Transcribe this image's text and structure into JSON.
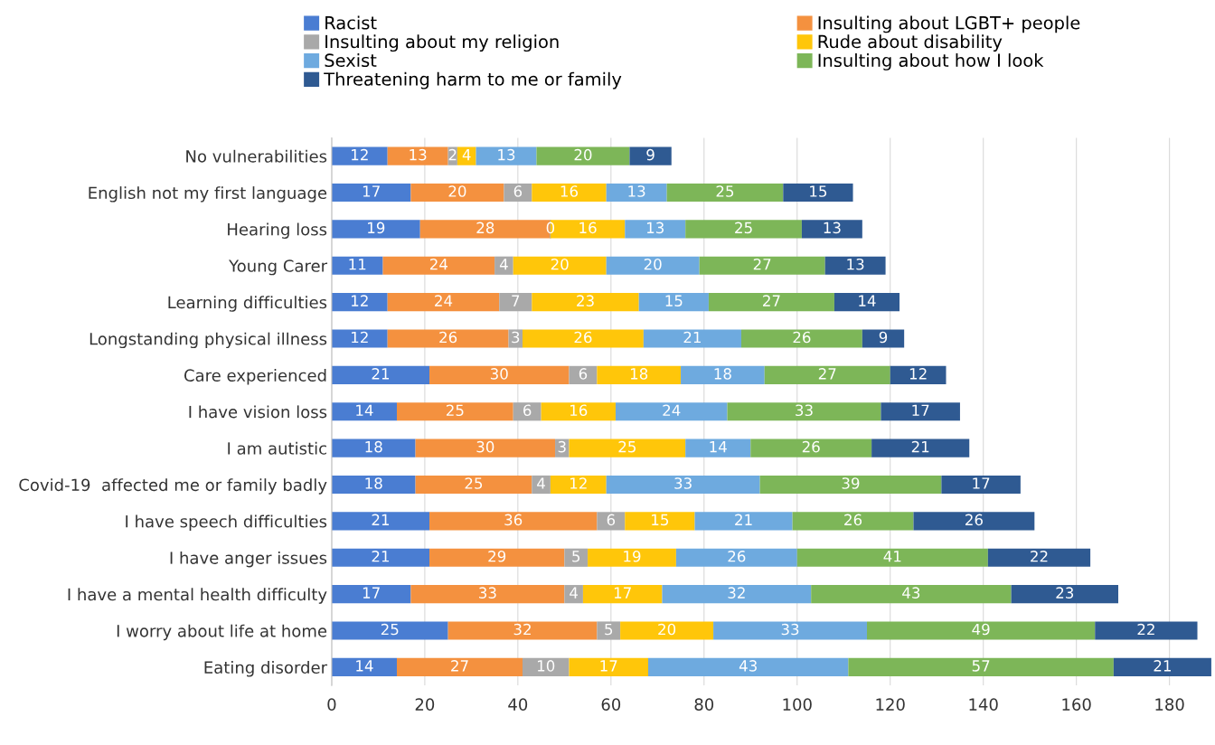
{
  "chart_data": {
    "type": "bar",
    "orientation": "horizontal",
    "stacked": true,
    "data_labels": true,
    "grid": "x",
    "legend": "top",
    "categories": [
      "No vulnerabilities",
      "English not my first language",
      "Hearing loss",
      "Young Carer",
      "Learning difficulties",
      "Longstanding physical illness",
      "Care experienced",
      "I have vision loss",
      "I am autistic",
      "Covid-19  affected me or family badly",
      "I have speech difficulties",
      "I have anger issues",
      "I have a mental health difficulty",
      "I worry about life at home",
      "Eating disorder"
    ],
    "xlim": [
      0,
      189
    ],
    "xticks": [
      0,
      20,
      40,
      60,
      80,
      100,
      120,
      140,
      160,
      180
    ],
    "series": [
      {
        "name": "Racist",
        "color": "#4a7dd2",
        "values": [
          12,
          17,
          19,
          11,
          12,
          12,
          21,
          14,
          18,
          18,
          21,
          21,
          17,
          25,
          14
        ]
      },
      {
        "name": "Insulting about LGBT+ people",
        "color": "#f4913f",
        "values": [
          13,
          20,
          28,
          24,
          24,
          26,
          30,
          25,
          30,
          25,
          36,
          29,
          33,
          32,
          27
        ]
      },
      {
        "name": "Insulting about my religion",
        "color": "#a9a9a9",
        "values": [
          2,
          6,
          0,
          4,
          7,
          3,
          6,
          6,
          3,
          4,
          6,
          5,
          4,
          5,
          10
        ],
        "value_labels": [
          "2",
          "6",
          "0",
          "4",
          "7",
          "3",
          "6",
          "6",
          "3",
          "4",
          "6",
          "5",
          "4",
          "5",
          "10"
        ]
      },
      {
        "name": "Rude about disability",
        "color": "#ffc60a",
        "values": [
          4,
          16,
          16,
          20,
          23,
          26,
          18,
          16,
          25,
          12,
          15,
          19,
          17,
          20,
          17
        ]
      },
      {
        "name": "Sexist",
        "color": "#6eaadf",
        "values": [
          13,
          13,
          13,
          20,
          15,
          21,
          18,
          24,
          14,
          33,
          21,
          26,
          32,
          33,
          43
        ]
      },
      {
        "name": "Insulting about how I look",
        "color": "#7db658",
        "values": [
          20,
          25,
          25,
          27,
          27,
          26,
          27,
          33,
          26,
          39,
          26,
          41,
          43,
          49,
          57
        ]
      },
      {
        "name": "Threatening harm to me or family",
        "color": "#2f5a92",
        "values": [
          9,
          15,
          13,
          13,
          14,
          9,
          12,
          17,
          21,
          17,
          26,
          22,
          23,
          22,
          21
        ]
      }
    ]
  }
}
